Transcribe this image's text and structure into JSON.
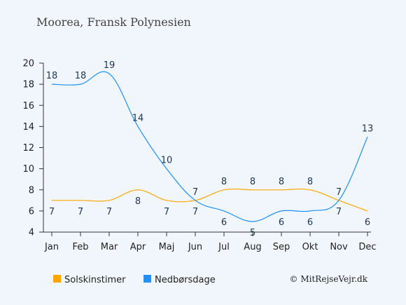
{
  "chart_data": {
    "type": "line",
    "title": "Moorea, Fransk Polynesien",
    "categories": [
      "Jan",
      "Feb",
      "Mar",
      "Apr",
      "Maj",
      "Jun",
      "Jul",
      "Aug",
      "Sep",
      "Okt",
      "Nov",
      "Dec"
    ],
    "ylim": [
      4,
      20
    ],
    "yticks": [
      4,
      6,
      8,
      10,
      12,
      14,
      16,
      18,
      20
    ],
    "grid": false,
    "legend_position": "bottom-left",
    "series": [
      {
        "name": "Solskinstimer",
        "color": "#ffa500",
        "values": [
          7,
          7,
          7,
          8,
          7,
          7,
          8,
          8,
          8,
          8,
          7,
          6
        ]
      },
      {
        "name": "Nedbørsdage",
        "color": "#1e90ff",
        "values": [
          18,
          18,
          19,
          14,
          10,
          7,
          6,
          5,
          6,
          6,
          7,
          13
        ]
      }
    ],
    "label_color": "#1d3557",
    "credit": "© MitRejseVejr.dk"
  }
}
